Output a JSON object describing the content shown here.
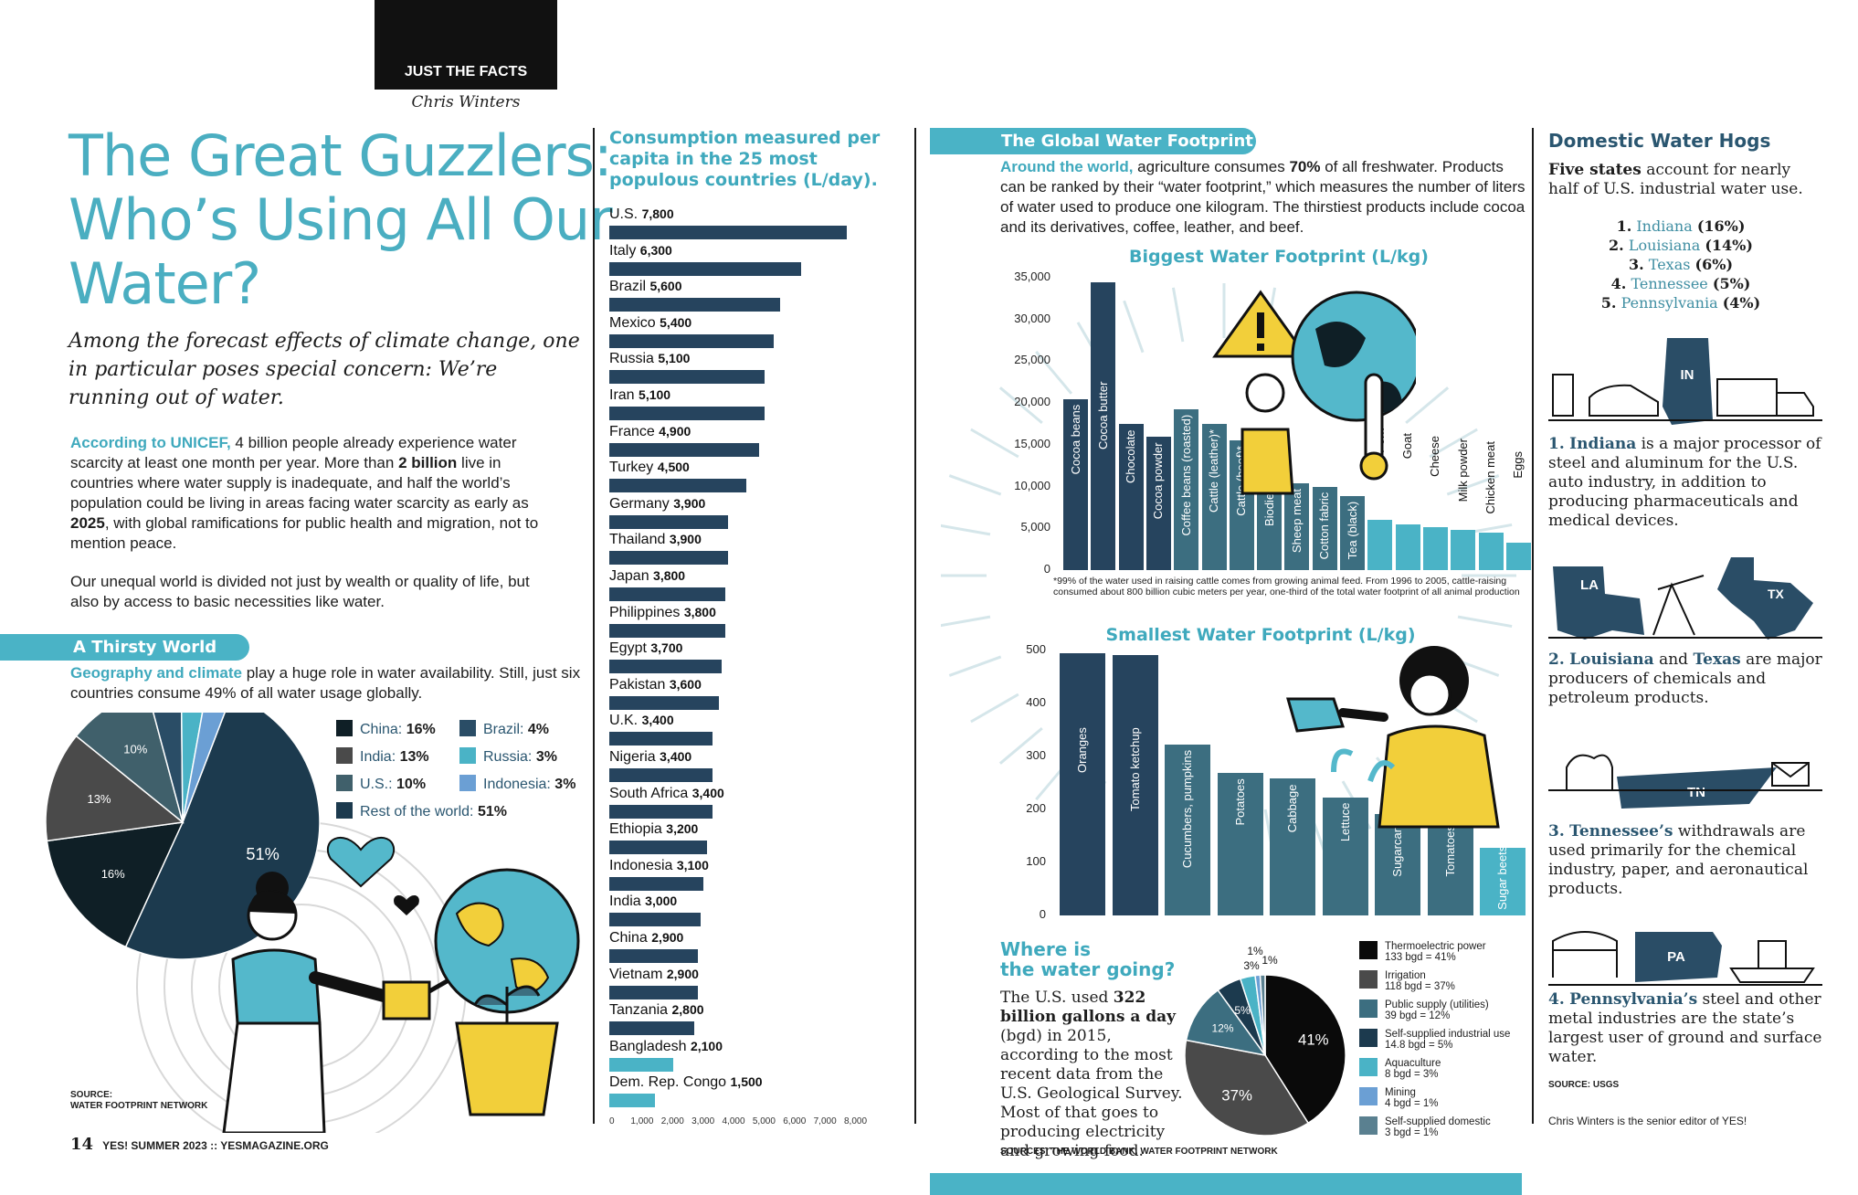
{
  "header": {
    "section": "JUST THE FACTS",
    "author": "Chris Winters"
  },
  "title": "The Great Guzzlers: Who’s Using All Our Water?",
  "deck": "Among the forecast effects of climate change, one in particular poses special concern: We’re running out of water.",
  "intro": {
    "p1_lead": "According to UNICEF,",
    "p1_a": " 4 billion people already experience water scarcity at least one month per year. More than ",
    "p1_b": "2 billion",
    "p1_c": " live in countries where water supply is inadequate, and half the world’s population could be living in areas facing water scarcity as early as ",
    "p1_d": "2025",
    "p1_e": ", with global ramifications for public health and migration, not to mention peace.",
    "p2": "Our unequal world is divided not just by wealth or quality of life, but also by access to basic necessities like water."
  },
  "thirsty": {
    "pill": "A Thirsty World",
    "lead": "Geography and climate",
    "text": " play a huge role in water availability. Still, just six countries consume 49% of all water usage globally."
  },
  "source_left": {
    "label": "SOURCE:",
    "value": "WATER FOOTPRINT NETWORK"
  },
  "footer": {
    "page": "14",
    "text": "YES! SUMMER 2023  ::  YESMAGAZINE.ORG"
  },
  "consumption": {
    "title": "Consumption measured per capita in the 25 most populous countries (L/day)."
  },
  "global": {
    "pill": "The Global Water Footprint",
    "lead": "Around the world,",
    "t1": " agriculture consumes ",
    "t2": "70%",
    "t3": " of all freshwater. Products can be ranked by their “water footprint,” which measures the number of liters of water used to produce one kilogram. The thirstiest products include cocoa and its derivatives, coffee, leather, and beef.",
    "footnote": "*99% of the water used in raising cattle comes from growing animal feed. From 1996 to 2005, cattle-raising consumed about 800 billion cubic meters per year, one-third of the total water footprint of all animal production"
  },
  "where": {
    "title_1": "Where is",
    "title_2": "the water going?",
    "t1": "The U.S. used ",
    "t2": "322 billion gallons a day",
    "t3": " (bgd) in 2015, according to the most recent data from the U.S. Geological Survey. Most of that goes to producing electricity and growing food.",
    "source": "SOURCES: THE WORLD BANK, WATER FOOTPRINT NETWORK"
  },
  "domestic": {
    "title": "Domestic Water Hogs",
    "intro_b": "Five states",
    "intro": " account for nearly half of U.S. industrial water use.",
    "ranks": [
      {
        "n": "1.",
        "state": "Indiana",
        "pct": "(16%)"
      },
      {
        "n": "2.",
        "state": "Louisiana",
        "pct": "(14%)"
      },
      {
        "n": "3.",
        "state": "Texas",
        "pct": "(6%)"
      },
      {
        "n": "4.",
        "state": "Tennessee",
        "pct": "(5%)"
      },
      {
        "n": "5.",
        "state": "Pennsylvania",
        "pct": "(4%)"
      }
    ],
    "p1_n": "1.",
    "p1_s": "Indiana",
    "p1_t": " is a major processor of steel and aluminum for the U.S. auto industry, in addition to producing pharmaceuticals and medical devices.",
    "p2_n": "2.",
    "p2_s": "Louisiana",
    "p2_and": " and ",
    "p2_s2": "Texas",
    "p2_t": " are major producers of chemicals and petroleum products.",
    "p3_n": "3.",
    "p3_s": "Tennessee’s",
    "p3_t": " withdrawals are used primarily for the chemical industry, paper, and aeronautical products.",
    "p4_n": "4.",
    "p4_s": "Pennsylvania’s",
    "p4_t": " steel and other metal industries are the state’s largest user of ground and surface water.",
    "state_tags": [
      "IN",
      "LA",
      "TX",
      "TN",
      "PA"
    ],
    "source": "SOURCE: USGS",
    "bio": "Chris Winters is the senior editor of YES!"
  },
  "colors": {
    "teal": "#4ab3c6",
    "navy": "#26445e",
    "dark": "#0f1f26"
  },
  "chart_data": [
    {
      "type": "pie",
      "id": "world-pie",
      "slices": [
        {
          "name": "Rest of the world",
          "value": 51,
          "label": "51%",
          "color": "#1c3a4e"
        },
        {
          "name": "China",
          "value": 16,
          "label": "16%",
          "color": "#0f1f26"
        },
        {
          "name": "India",
          "value": 13,
          "label": "13%",
          "color": "#4a4a4a"
        },
        {
          "name": "U.S.",
          "value": 10,
          "label": "10%",
          "color": "#40606b"
        },
        {
          "name": "Brazil",
          "value": 4,
          "label": "4%",
          "color": "#2a4d66"
        },
        {
          "name": "Russia",
          "value": 3,
          "label": "3%",
          "color": "#4ab3c6"
        },
        {
          "name": "Indonesia",
          "value": 3,
          "label": "3%",
          "color": "#6b9fd4"
        }
      ],
      "legend": [
        {
          "name": "China:",
          "value": "16%",
          "color": "#0f1f26"
        },
        {
          "name": "Brazil:",
          "value": "4%",
          "color": "#2a4d66"
        },
        {
          "name": "India:",
          "value": "13%",
          "color": "#4a4a4a"
        },
        {
          "name": "Russia:",
          "value": "3%",
          "color": "#4ab3c6"
        },
        {
          "name": "U.S.:",
          "value": "10%",
          "color": "#40606b"
        },
        {
          "name": "Indonesia:",
          "value": "3%",
          "color": "#6b9fd4"
        },
        {
          "name": "Rest of the world:",
          "value": "51%",
          "color": "#1c3a4e"
        }
      ]
    },
    {
      "type": "bar",
      "id": "consumption",
      "orientation": "horizontal",
      "categories": [
        "U.S.",
        "Italy",
        "Brazil",
        "Mexico",
        "Russia",
        "Iran",
        "France",
        "Turkey",
        "Germany",
        "Thailand",
        "Japan",
        "Philippines",
        "Egypt",
        "Pakistan",
        "U.K.",
        "Nigeria",
        "South Africa",
        "Ethiopia",
        "Indonesia",
        "India",
        "China",
        "Vietnam",
        "Tanzania",
        "Bangladesh",
        "Dem. Rep. Congo"
      ],
      "values": [
        7800,
        6300,
        5600,
        5400,
        5100,
        5100,
        4900,
        4500,
        3900,
        3900,
        3800,
        3800,
        3700,
        3600,
        3400,
        3400,
        3400,
        3200,
        3100,
        3000,
        2900,
        2900,
        2800,
        2100,
        1500
      ],
      "labels": [
        "7,800",
        "6,300",
        "5,600",
        "5,400",
        "5,100",
        "5,100",
        "4,900",
        "4,500",
        "3,900",
        "3,900",
        "3,800",
        "3,800",
        "3,700",
        "3,600",
        "3,400",
        "3,400",
        "3,400",
        "3,200",
        "3,100",
        "3,000",
        "2,900",
        "2,900",
        "2,800",
        "2,100",
        "1,500"
      ],
      "xticks": [
        "0",
        "1,000",
        "2,000",
        "3,000",
        "4,000",
        "5,000",
        "6,000",
        "7,000",
        "8,000"
      ],
      "xlim": [
        0,
        8000
      ]
    },
    {
      "type": "bar",
      "id": "biggest",
      "title": "Biggest Water Footprint (L/kg)",
      "categories": [
        "Cocoa beans",
        "Cocoa butter",
        "Chocolate",
        "Cocoa powder",
        "Coffee beans (roasted)",
        "Cattle (leather)*",
        "Cattle (beef)*",
        "Biodiesel",
        "Sheep meat",
        "Cotton fabric",
        "Tea (black)",
        "Pork",
        "Goat",
        "Cheese",
        "Milk powder",
        "Chicken meat",
        "Eggs"
      ],
      "values": [
        20500,
        34500,
        17500,
        16000,
        19200,
        17500,
        15500,
        11700,
        10400,
        10000,
        8900,
        6000,
        5500,
        5100,
        4800,
        4500,
        3300
      ],
      "yticks": [
        "0",
        "5,000",
        "10,000",
        "15,000",
        "20,000",
        "25,000",
        "30,000",
        "35,000"
      ],
      "ylim": [
        0,
        35000
      ]
    },
    {
      "type": "bar",
      "id": "smallest",
      "title": "Smallest Water Footprint (L/kg)",
      "categories": [
        "Oranges",
        "Tomato ketchup",
        "Cucumbers, pumpkins",
        "Potatoes",
        "Cabbage",
        "Lettuce",
        "Sugarcane",
        "Tomatoes",
        "Sugar beets"
      ],
      "values": [
        545,
        540,
        355,
        295,
        285,
        245,
        210,
        200,
        140
      ],
      "yticks": [
        "0",
        "100",
        "200",
        "300",
        "400",
        "500"
      ],
      "ylim": [
        0,
        550
      ]
    },
    {
      "type": "pie",
      "id": "where-pie",
      "slices": [
        {
          "name": "Thermoelectric power",
          "value": 41,
          "label": "41%",
          "color": "#0a0a0a"
        },
        {
          "name": "Irrigation",
          "value": 37,
          "label": "37%",
          "color": "#4a4a4a"
        },
        {
          "name": "Public supply (utilities)",
          "value": 12,
          "label": "12%",
          "color": "#3c6e80"
        },
        {
          "name": "Self-supplied industrial use",
          "value": 5,
          "label": "5%",
          "color": "#1c3a4e"
        },
        {
          "name": "Aquaculture",
          "value": 3,
          "label": "3%",
          "color": "#4ab3c6"
        },
        {
          "name": "Mining",
          "value": 1,
          "label": "1%",
          "color": "#6b9fd4"
        },
        {
          "name": "Self-supplied domestic",
          "value": 1,
          "label": "1%",
          "color": "#5a8090"
        }
      ],
      "legend": [
        {
          "name": "Thermoelectric power",
          "value": "133 bgd = 41%",
          "color": "#0a0a0a"
        },
        {
          "name": "Irrigation",
          "value": "118 bgd = 37%",
          "color": "#4a4a4a"
        },
        {
          "name": "Public supply (utilities)",
          "value": "39 bgd = 12%",
          "color": "#3c6e80"
        },
        {
          "name": "Self-supplied industrial use",
          "value": "14.8 bgd = 5%",
          "color": "#1c3a4e"
        },
        {
          "name": "Aquaculture",
          "value": "8 bgd = 3%",
          "color": "#4ab3c6"
        },
        {
          "name": "Mining",
          "value": "4 bgd = 1%",
          "color": "#6b9fd4"
        },
        {
          "name": "Self-supplied domestic",
          "value": "3 bgd = 1%",
          "color": "#5a8090"
        }
      ]
    }
  ]
}
